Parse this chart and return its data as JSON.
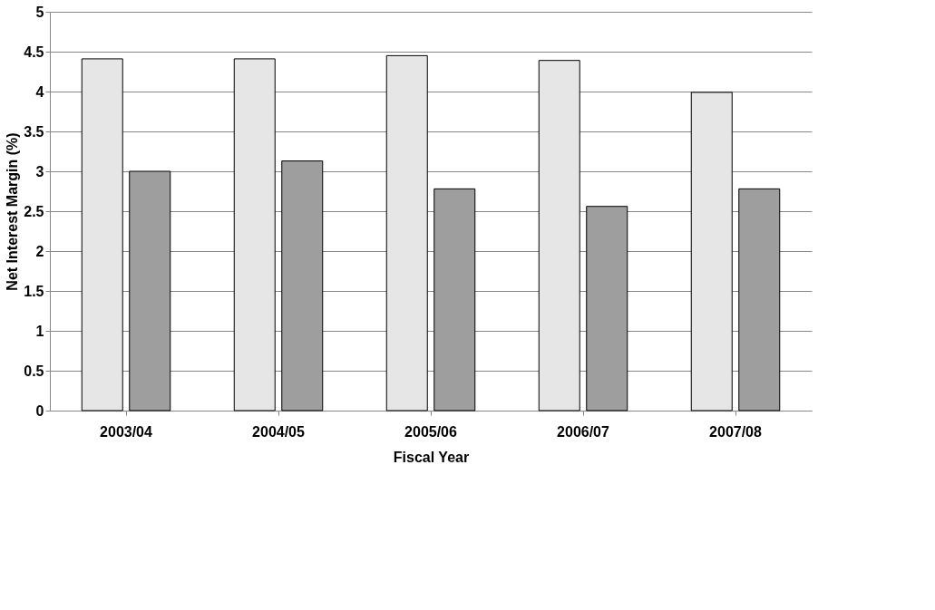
{
  "chart_data": {
    "type": "bar",
    "xlabel": "Fiscal Year",
    "ylabel": "Net Interest Margin (%)",
    "categories": [
      "2003/04",
      "2004/05",
      "2005/06",
      "2006/07",
      "2007/08"
    ],
    "series": [
      {
        "color": "#e6e6e6",
        "values": [
          4.41,
          4.41,
          4.45,
          4.39,
          3.99
        ]
      },
      {
        "color": "#9e9e9e",
        "values": [
          3.0,
          3.13,
          2.78,
          2.56,
          2.78
        ]
      }
    ],
    "ylim": [
      0,
      5
    ],
    "yticks": [
      0,
      0.5,
      1,
      1.5,
      2,
      2.5,
      3,
      3.5,
      4,
      4.5,
      5
    ],
    "grid": "y"
  }
}
